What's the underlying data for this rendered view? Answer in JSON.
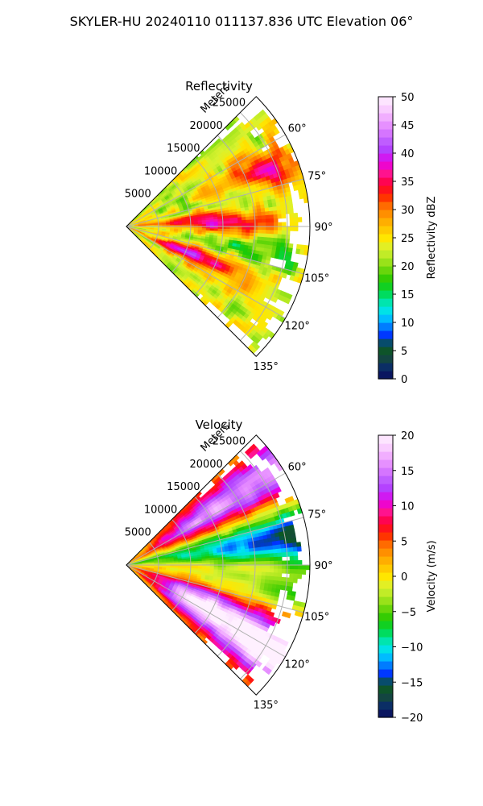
{
  "figure": {
    "title": "SKYLER-HU  20240110  011137.836 UTC Elevation 06°"
  },
  "chart_data": [
    {
      "type": "heatmap",
      "subtype": "polar-sector-ppi",
      "title": "Reflectivity",
      "radial_label": "Meters",
      "radial_ticks": [
        "5000",
        "10000",
        "15000",
        "20000",
        "25000"
      ],
      "radial_tick_values": [
        5000,
        10000,
        15000,
        20000,
        25000
      ],
      "angular_ticks": [
        "60°",
        "75°",
        "90°",
        "105°",
        "120°",
        "135°"
      ],
      "angular_tick_values": [
        60,
        75,
        90,
        105,
        120,
        135
      ],
      "azimuth_range_deg": [
        45,
        135
      ],
      "range_max_m": 28500,
      "grid": true,
      "colorbar": {
        "label": "Reflectivity dBZ",
        "min": 0,
        "max": 50,
        "ticks": [
          "0",
          "5",
          "10",
          "15",
          "20",
          "25",
          "30",
          "35",
          "40",
          "45",
          "50"
        ],
        "tick_values": [
          0,
          5,
          10,
          15,
          20,
          25,
          30,
          35,
          40,
          45,
          50
        ],
        "colormap": [
          "#0a0a5a",
          "#0a2a6a",
          "#154a3a",
          "#0a5a20",
          "#0030ff",
          "#008cff",
          "#00e0ff",
          "#00e6b4",
          "#00d94a",
          "#20c800",
          "#66d60a",
          "#a8e61e",
          "#d8f230",
          "#ffe600",
          "#ffc000",
          "#ff9a00",
          "#ff6a00",
          "#ff2000",
          "#ff0040",
          "#ff1493",
          "#e600e6",
          "#b23cff",
          "#c060ff",
          "#e080ff",
          "#f0a8ff",
          "#fad2ff",
          "#fff0ff"
        ]
      },
      "observed_range_dbz": [
        15,
        45
      ],
      "features": [
        "Widespread 20–30 dBZ echo across the sector",
        "Band of 35–42 dBZ cores along roughly 80–90° azimuth at 8–20 km",
        "Second band of 35–42 dBZ cores along roughly 110–125° azimuth at 6–15 km",
        "Isolated 38–42 dBZ cores near 65–75° azimuth at 18–24 km",
        "Echo becomes sparse and patchy beyond about 22 km"
      ]
    },
    {
      "type": "heatmap",
      "subtype": "polar-sector-ppi",
      "title": "Velocity",
      "radial_label": "Meters",
      "radial_ticks": [
        "5000",
        "10000",
        "15000",
        "20000",
        "25000"
      ],
      "radial_tick_values": [
        5000,
        10000,
        15000,
        20000,
        25000
      ],
      "angular_ticks": [
        "60°",
        "75°",
        "90°",
        "105°",
        "120°",
        "135°"
      ],
      "angular_tick_values": [
        60,
        75,
        90,
        105,
        120,
        135
      ],
      "azimuth_range_deg": [
        45,
        135
      ],
      "range_max_m": 28500,
      "grid": true,
      "colorbar": {
        "label": "Velocity (m/s)",
        "min": -20,
        "max": 20,
        "ticks": [
          "−20",
          "−15",
          "−10",
          "−5",
          "0",
          "5",
          "10",
          "15",
          "20"
        ],
        "tick_values": [
          -20,
          -15,
          -10,
          -5,
          0,
          5,
          10,
          15,
          20
        ],
        "colormap": [
          "#0a0a5a",
          "#0a2a6a",
          "#154a3a",
          "#0a5a20",
          "#0030ff",
          "#008cff",
          "#00e0ff",
          "#00e6b4",
          "#00d94a",
          "#20c800",
          "#66d60a",
          "#a8e61e",
          "#d8f230",
          "#ffe600",
          "#ffc000",
          "#ff9a00",
          "#ff6a00",
          "#ff2000",
          "#ff0040",
          "#ff1493",
          "#e600e6",
          "#b23cff",
          "#c060ff",
          "#e080ff",
          "#f0a8ff",
          "#fad2ff",
          "#fff0ff"
        ]
      },
      "observed_range_ms": [
        -14,
        17
      ],
      "features": [
        "Inbound −10 to −13 m/s (cyan/teal) near 70–90° azimuth beyond 12 km",
        "Near-zero (yellow) band along the sector axis near 90°",
        "Outbound 10–17 m/s (red/magenta) along the 55–70° edge",
        "Outbound 10–17 m/s (red/magenta) along 100–125° azimuth",
        "Green −5 m/s transition zone curving from 95° to 115°"
      ]
    }
  ]
}
